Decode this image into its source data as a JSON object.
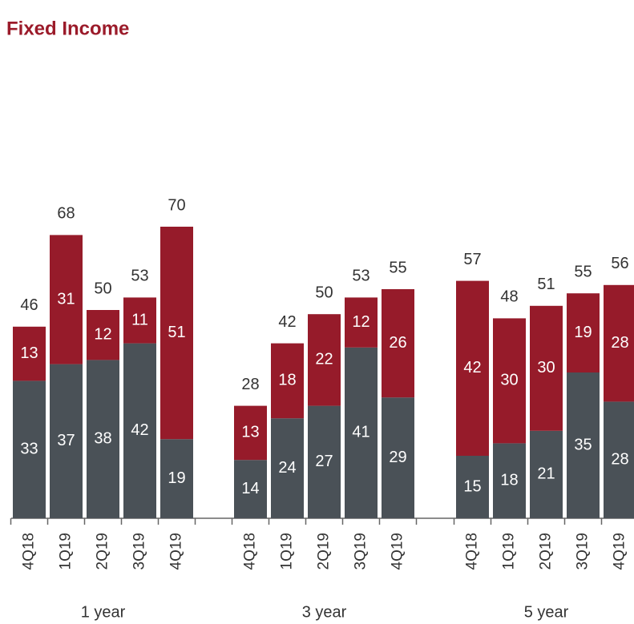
{
  "chart_data": {
    "type": "stacked-bar",
    "title": "Fixed Income",
    "groups": [
      {
        "label": "1 year",
        "categories": [
          "4Q18",
          "1Q19",
          "2Q19",
          "3Q19",
          "4Q19"
        ],
        "totals": [
          46,
          68,
          50,
          53,
          70
        ]
      },
      {
        "label": "3 year",
        "categories": [
          "4Q18",
          "1Q19",
          "2Q19",
          "3Q19",
          "4Q19"
        ],
        "totals": [
          28,
          42,
          50,
          53,
          55
        ]
      },
      {
        "label": "5 year",
        "categories": [
          "4Q18",
          "1Q19",
          "2Q19",
          "3Q19",
          "4Q19"
        ],
        "totals": [
          57,
          48,
          51,
          55,
          56
        ]
      }
    ],
    "series": [
      {
        "color": "#4a5157",
        "values": [
          [
            33,
            37,
            38,
            42,
            19
          ],
          [
            14,
            24,
            27,
            41,
            29
          ],
          [
            15,
            18,
            21,
            35,
            28
          ]
        ]
      },
      {
        "color": "#961b2a",
        "values": [
          [
            13,
            31,
            12,
            11,
            51
          ],
          [
            13,
            18,
            22,
            12,
            26
          ],
          [
            42,
            30,
            30,
            19,
            28
          ]
        ]
      }
    ]
  }
}
